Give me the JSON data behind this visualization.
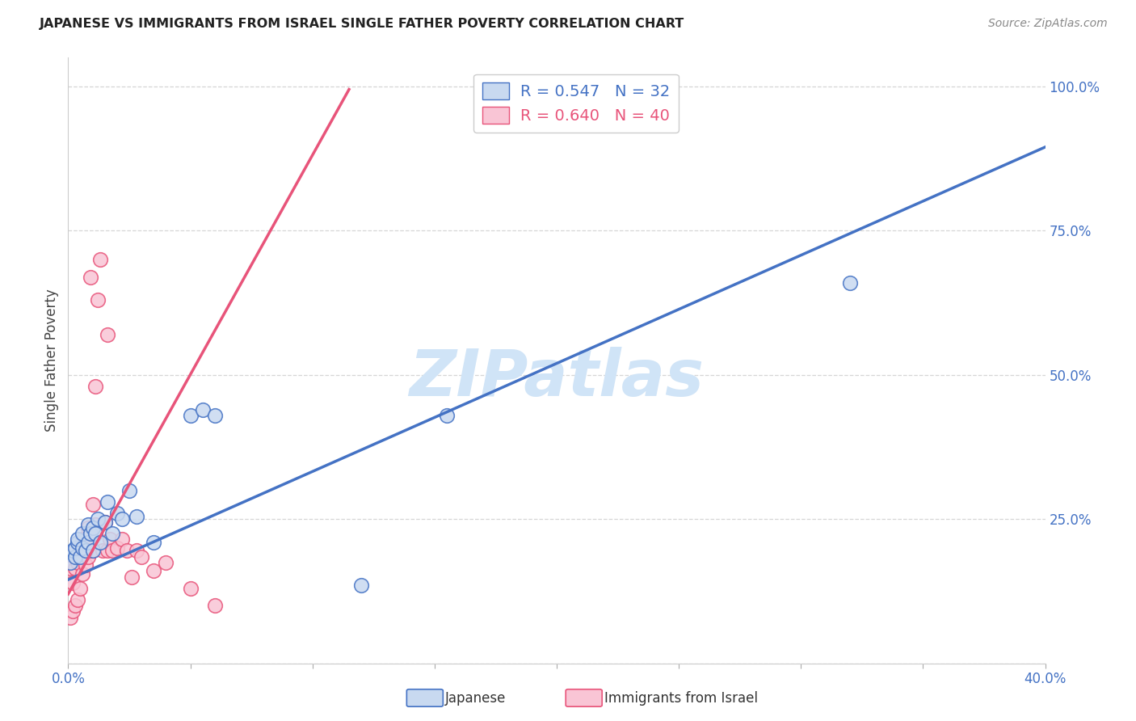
{
  "title": "JAPANESE VS IMMIGRANTS FROM ISRAEL SINGLE FATHER POVERTY CORRELATION CHART",
  "source": "Source: ZipAtlas.com",
  "ylabel": "Single Father Poverty",
  "xlabel_japanese": "Japanese",
  "xlabel_israel": "Immigrants from Israel",
  "watermark": "ZIPatlas",
  "xlim": [
    0.0,
    0.4
  ],
  "ylim": [
    0.0,
    1.05
  ],
  "xtick_vals": [
    0.0,
    0.05,
    0.1,
    0.15,
    0.2,
    0.25,
    0.3,
    0.35,
    0.4
  ],
  "ytick_vals": [
    0.0,
    0.25,
    0.5,
    0.75,
    1.0
  ],
  "legend_blue_r": "R = 0.547",
  "legend_blue_n": "N = 32",
  "legend_pink_r": "R = 0.640",
  "legend_pink_n": "N = 40",
  "blue_face": "#C8D9F0",
  "blue_edge": "#4472C4",
  "pink_face": "#F9C5D5",
  "pink_edge": "#E8547A",
  "line_blue_color": "#4472C4",
  "line_pink_color": "#E8547A",
  "tick_label_color": "#4472C4",
  "title_color": "#222222",
  "source_color": "#888888",
  "ylabel_color": "#444444",
  "watermark_color": "#D0E4F7",
  "blue_line_x0": 0.0,
  "blue_line_y0": 0.145,
  "blue_line_x1": 0.4,
  "blue_line_y1": 0.895,
  "pink_line_x0": 0.0,
  "pink_line_y0": 0.12,
  "pink_line_x1": 0.115,
  "pink_line_y1": 0.995,
  "blue_x": [
    0.001,
    0.002,
    0.003,
    0.003,
    0.004,
    0.004,
    0.005,
    0.006,
    0.006,
    0.007,
    0.008,
    0.008,
    0.009,
    0.01,
    0.01,
    0.011,
    0.012,
    0.013,
    0.015,
    0.016,
    0.018,
    0.02,
    0.022,
    0.025,
    0.028,
    0.035,
    0.05,
    0.055,
    0.06,
    0.12,
    0.155,
    0.32
  ],
  "blue_y": [
    0.175,
    0.195,
    0.185,
    0.2,
    0.21,
    0.215,
    0.185,
    0.2,
    0.225,
    0.195,
    0.24,
    0.21,
    0.225,
    0.235,
    0.195,
    0.225,
    0.25,
    0.21,
    0.245,
    0.28,
    0.225,
    0.26,
    0.25,
    0.3,
    0.255,
    0.21,
    0.43,
    0.44,
    0.43,
    0.135,
    0.43,
    0.66
  ],
  "pink_x": [
    0.001,
    0.001,
    0.002,
    0.002,
    0.003,
    0.003,
    0.004,
    0.004,
    0.005,
    0.005,
    0.006,
    0.006,
    0.007,
    0.007,
    0.008,
    0.008,
    0.009,
    0.009,
    0.01,
    0.01,
    0.011,
    0.011,
    0.012,
    0.013,
    0.014,
    0.015,
    0.016,
    0.016,
    0.017,
    0.018,
    0.02,
    0.022,
    0.024,
    0.026,
    0.028,
    0.03,
    0.035,
    0.04,
    0.05,
    0.06
  ],
  "pink_y": [
    0.165,
    0.08,
    0.14,
    0.09,
    0.165,
    0.1,
    0.175,
    0.11,
    0.195,
    0.13,
    0.215,
    0.155,
    0.215,
    0.17,
    0.235,
    0.185,
    0.67,
    0.195,
    0.195,
    0.275,
    0.24,
    0.48,
    0.63,
    0.7,
    0.195,
    0.245,
    0.57,
    0.195,
    0.215,
    0.195,
    0.2,
    0.215,
    0.195,
    0.15,
    0.195,
    0.185,
    0.16,
    0.175,
    0.13,
    0.1
  ]
}
